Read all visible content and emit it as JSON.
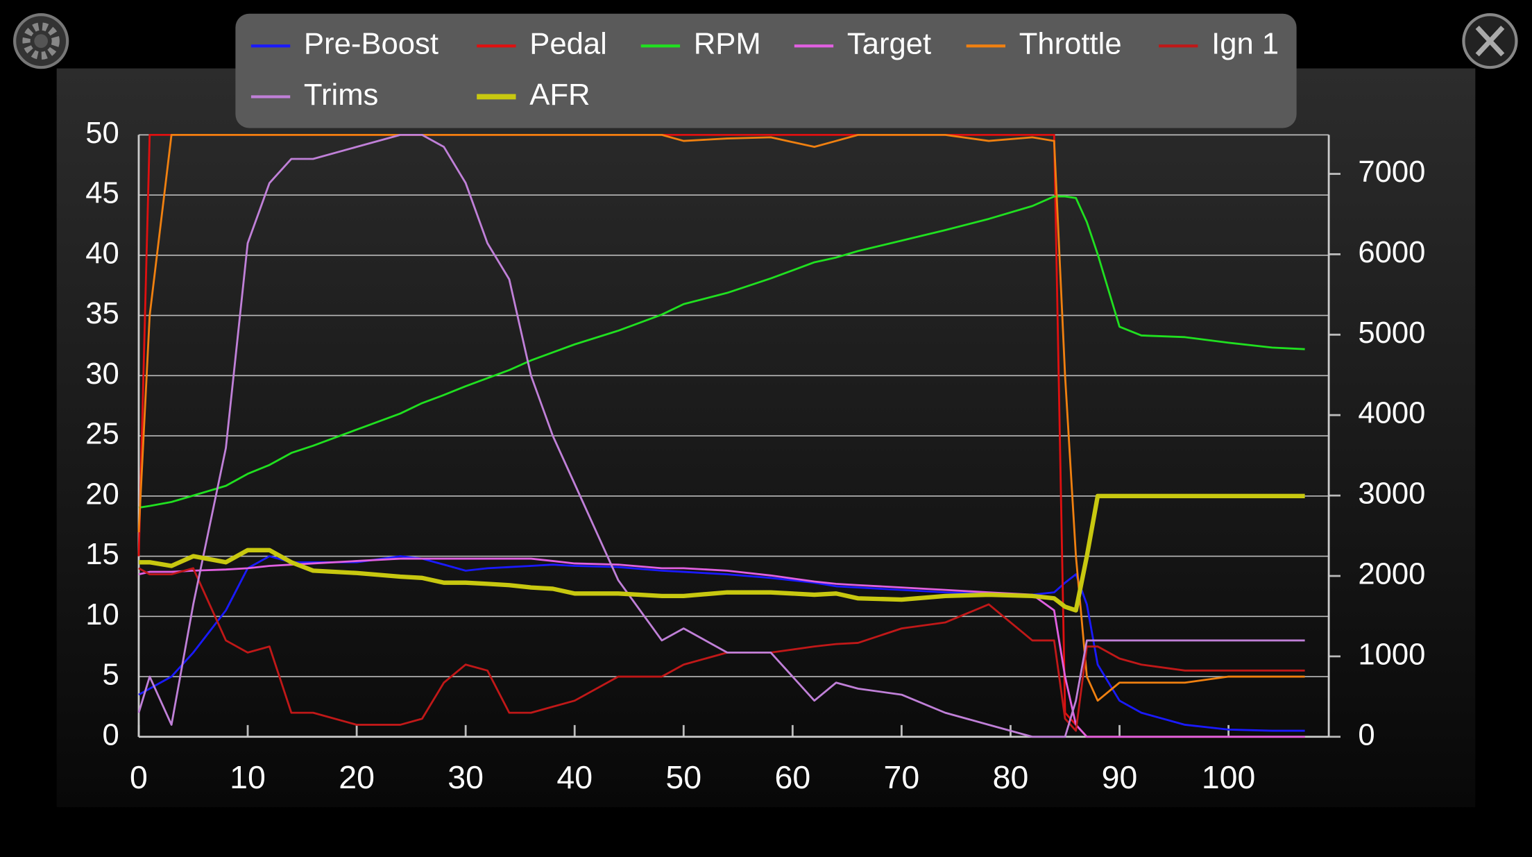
{
  "chart_data": {
    "type": "line",
    "x": [
      0,
      1,
      3,
      5,
      8,
      10,
      12,
      14,
      16,
      20,
      24,
      26,
      28,
      30,
      32,
      34,
      36,
      38,
      40,
      44,
      48,
      50,
      54,
      58,
      62,
      64,
      66,
      70,
      74,
      78,
      82,
      84,
      85,
      86,
      87,
      88,
      90,
      92,
      96,
      100,
      104,
      107
    ],
    "series": [
      {
        "name": "Pre-Boost",
        "color": "#1a1aff",
        "values": [
          3.5,
          4,
          5,
          7,
          10.5,
          14,
          15,
          14.5,
          14.5,
          14.5,
          15,
          14.8,
          14.3,
          13.8,
          14,
          14.1,
          14.2,
          14.3,
          14.2,
          14.1,
          13.8,
          13.7,
          13.5,
          13.2,
          12.8,
          12.5,
          12.4,
          12.2,
          12,
          11.9,
          11.8,
          12,
          12.8,
          13.5,
          11,
          6,
          3,
          2,
          1,
          0.6,
          0.5,
          0.5
        ]
      },
      {
        "name": "Pedal",
        "color": "#e01010",
        "values": [
          15,
          50,
          50,
          50,
          50,
          50,
          50,
          50,
          50,
          50,
          50,
          50,
          50,
          50,
          50,
          50,
          50,
          50,
          50,
          50,
          50,
          50,
          50,
          50,
          50,
          50,
          50,
          50,
          50,
          50,
          50,
          50,
          2,
          1,
          0,
          0,
          0,
          0,
          0,
          0,
          0,
          0
        ]
      },
      {
        "name": "RPM",
        "color": "#20e020",
        "axis": "y2",
        "values": [
          2850,
          2870,
          2920,
          3000,
          3120,
          3270,
          3380,
          3530,
          3620,
          3820,
          4020,
          4150,
          4250,
          4360,
          4460,
          4560,
          4680,
          4780,
          4880,
          5050,
          5250,
          5380,
          5520,
          5700,
          5900,
          5960,
          6040,
          6170,
          6300,
          6440,
          6600,
          6720,
          6720,
          6700,
          6400,
          6000,
          5100,
          4990,
          4970,
          4900,
          4840,
          4820
        ]
      },
      {
        "name": "Target",
        "color": "#e060e0",
        "values": [
          13.5,
          13.7,
          13.7,
          13.8,
          13.9,
          14,
          14.2,
          14.3,
          14.4,
          14.6,
          14.8,
          14.8,
          14.8,
          14.8,
          14.8,
          14.8,
          14.8,
          14.6,
          14.4,
          14.3,
          14,
          14,
          13.8,
          13.4,
          12.9,
          12.7,
          12.6,
          12.4,
          12.2,
          12,
          11.8,
          10.5,
          5,
          1,
          0,
          0,
          0,
          0,
          0,
          0,
          0,
          0
        ]
      },
      {
        "name": "Throttle",
        "color": "#f08010",
        "values": [
          17,
          35,
          50,
          50,
          50,
          50,
          50,
          50,
          50,
          50,
          50,
          50,
          50,
          50,
          50,
          50,
          50,
          50,
          50,
          50,
          50,
          49.5,
          49.7,
          49.8,
          49,
          49.5,
          50,
          50,
          50,
          49.5,
          49.8,
          49.5,
          30,
          15,
          5,
          3,
          4.5,
          4.5,
          4.5,
          5,
          5,
          5
        ]
      },
      {
        "name": "Ign 1",
        "color": "#c01818",
        "values": [
          14,
          13.5,
          13.5,
          14,
          8,
          7,
          7.5,
          2,
          2,
          1,
          1,
          1.5,
          4.5,
          6,
          5.5,
          2,
          2,
          2.5,
          3,
          5,
          5,
          6,
          7,
          7,
          7.5,
          7.7,
          7.8,
          9,
          9.5,
          11,
          8,
          8,
          1.5,
          0.5,
          7.5,
          7.5,
          6.5,
          6,
          5.5,
          5.5,
          5.5,
          5.5
        ]
      },
      {
        "name": "Trims",
        "color": "#c080d8",
        "values": [
          2,
          5,
          1,
          11,
          24,
          41,
          46,
          48,
          48,
          49,
          50,
          50,
          49,
          46,
          41,
          38,
          30,
          25,
          21,
          13,
          8,
          9,
          7,
          7,
          3,
          4.5,
          4,
          3.5,
          2,
          1,
          0,
          0,
          0,
          3,
          8,
          8,
          8,
          8,
          8,
          8,
          8,
          8
        ]
      },
      {
        "name": "AFR",
        "color": "#c8c810",
        "values": [
          14.5,
          14.5,
          14.2,
          15,
          14.5,
          15.5,
          15.5,
          14.5,
          13.8,
          13.6,
          13.3,
          13.2,
          12.8,
          12.8,
          12.7,
          12.6,
          12.4,
          12.3,
          11.9,
          11.9,
          11.7,
          11.7,
          12,
          12,
          11.8,
          11.9,
          11.5,
          11.4,
          11.7,
          11.8,
          11.7,
          11.5,
          10.8,
          10.5,
          15,
          20,
          20,
          20,
          20,
          20,
          20,
          20
        ]
      }
    ],
    "xlim": [
      0,
      109.2
    ],
    "xticks": [
      0,
      10,
      20,
      30,
      40,
      50,
      60,
      70,
      80,
      90,
      100
    ],
    "ylim": [
      0,
      50
    ],
    "yticks": [
      0,
      5,
      10,
      15,
      20,
      25,
      30,
      35,
      40,
      45,
      50
    ],
    "y2lim": [
      0,
      7485
    ],
    "y2ticks": [
      0,
      1000,
      2000,
      3000,
      4000,
      5000,
      6000,
      7000
    ],
    "grid": true
  }
}
